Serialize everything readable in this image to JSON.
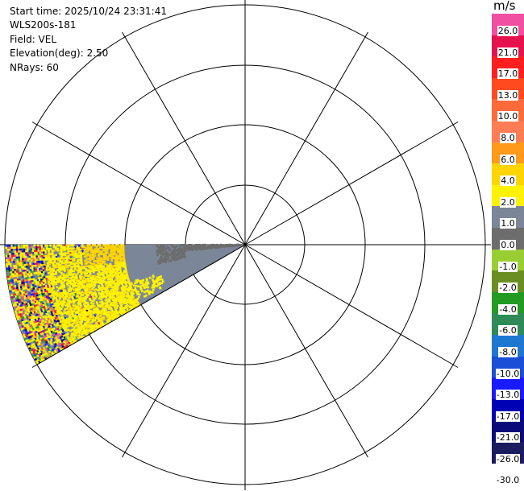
{
  "info": {
    "start_time": "Start time: 2025/10/24 23:31:41",
    "instrument": "WLS200s-181",
    "field": "Field: VEL",
    "elevation": "Elevation(deg): 2.50",
    "nrays": "NRays: 60"
  },
  "colorbar": {
    "unit": "m/s",
    "levels": [
      {
        "label": "26.0",
        "color": "#f0509f"
      },
      {
        "label": "21.0",
        "color": "#e6124e"
      },
      {
        "label": "17.0",
        "color": "#ff1f1f"
      },
      {
        "label": "13.0",
        "color": "#ff4a1f"
      },
      {
        "label": "10.0",
        "color": "#ff6a3a"
      },
      {
        "label": "8.0",
        "color": "#ff7d55"
      },
      {
        "label": "6.0",
        "color": "#ff9a1a"
      },
      {
        "label": "4.0",
        "color": "#ffd400"
      },
      {
        "label": "2.0",
        "color": "#fff200"
      },
      {
        "label": "1.0",
        "color": "#7b8799"
      },
      {
        "label": "0.0",
        "color": "#6d6d6d"
      },
      {
        "label": "-1.0",
        "color": "#9acd32"
      },
      {
        "label": "-2.0",
        "color": "#6b8e23"
      },
      {
        "label": "-4.0",
        "color": "#239b23"
      },
      {
        "label": "-6.0",
        "color": "#2e8b57"
      },
      {
        "label": "-8.0",
        "color": "#1e78d2"
      },
      {
        "label": "-10.0",
        "color": "#1a4fd6"
      },
      {
        "label": "-13.0",
        "color": "#1a1aff"
      },
      {
        "label": "-17.0",
        "color": "#0000b4"
      },
      {
        "label": "-21.0",
        "color": "#0a0a7a"
      },
      {
        "label": "-26.0",
        "color": "#1b1b60"
      },
      {
        "label": "-30.0",
        "color": ""
      }
    ]
  }
}
